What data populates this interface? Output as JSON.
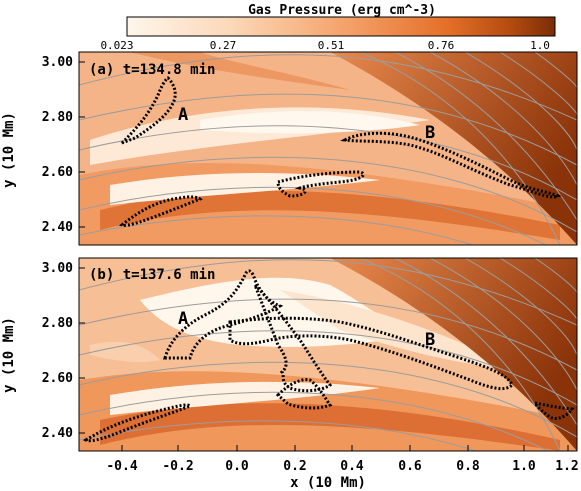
{
  "colorbar": {
    "title": "Gas Pressure (erg cm^-3)",
    "ticks": [
      "0.023",
      "0.27",
      "0.51",
      "0.76",
      "1.0"
    ],
    "colors": [
      "#fff6ec",
      "#fbd7b6",
      "#f5a46d",
      "#e46f28",
      "#b34a0e",
      "#7a2d06"
    ]
  },
  "panels": [
    {
      "label": "(a) t=134.8 min",
      "regions": [
        "A",
        "B"
      ]
    },
    {
      "label": "(b) t=137.6 min",
      "regions": [
        "A",
        "B"
      ]
    }
  ],
  "axes": {
    "xlabel": "x (10 Mm)",
    "ylabel": "y (10 Mm)",
    "xticks": [
      "-0.4",
      "-0.2",
      "0.0",
      "0.2",
      "0.4",
      "0.6",
      "0.8",
      "1.0",
      "1.2"
    ],
    "yticks": [
      "3.00",
      "2.80",
      "2.60",
      "2.40"
    ]
  },
  "chart_data": {
    "type": "heatmap",
    "title": "Gas Pressure (erg cm^-3)",
    "xlabel": "x (10 Mm)",
    "ylabel": "y (10 Mm)",
    "xlim": [
      -0.6,
      1.22
    ],
    "ylim": [
      2.33,
      3.02
    ],
    "colorbar_range": [
      0.023,
      1.0
    ],
    "grid": false,
    "panels": [
      {
        "label": "(a) t=134.8 min",
        "annotations": [
          "A",
          "B"
        ]
      },
      {
        "label": "(b) t=137.6 min",
        "annotations": [
          "A",
          "B"
        ]
      }
    ]
  }
}
